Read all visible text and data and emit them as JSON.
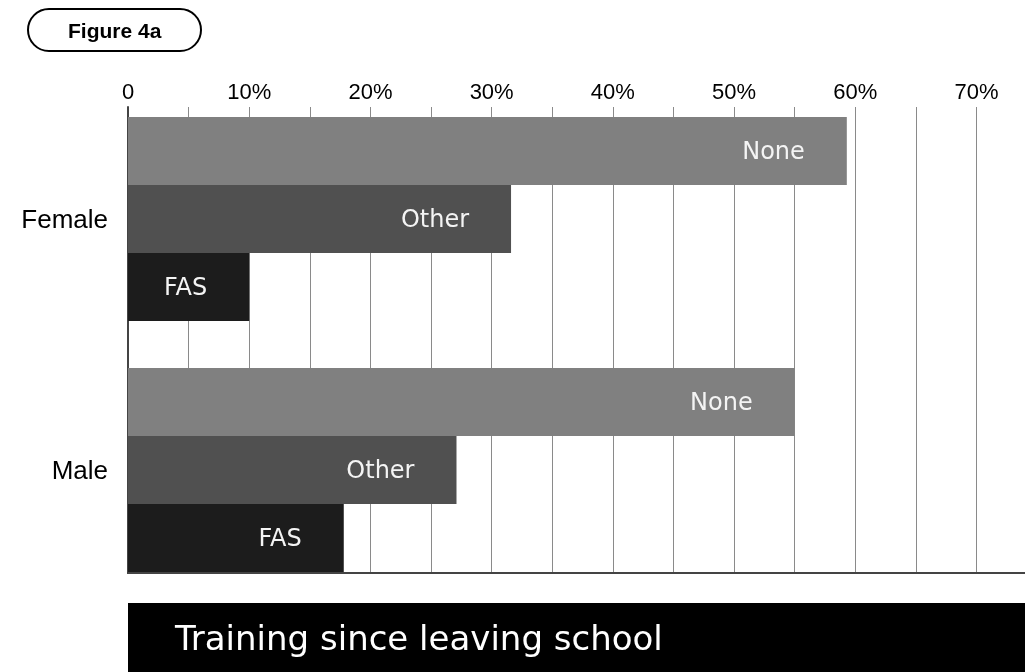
{
  "chart_data": {
    "type": "bar",
    "orientation": "horizontal",
    "title": "Training since leaving school",
    "annotations": [
      "Figure 4a"
    ],
    "categories": [
      "Female",
      "Male"
    ],
    "series": [
      {
        "name": "None",
        "color": "#808080",
        "values": [
          59.3,
          55
        ]
      },
      {
        "name": "Other",
        "color": "#505050",
        "values": [
          31.6,
          27.1
        ]
      },
      {
        "name": "FAS",
        "color": "#1c1c1c",
        "values": [
          10,
          17.8
        ]
      }
    ],
    "xlim": [
      0,
      74
    ],
    "xticks": [
      0,
      {
        "value": 5,
        "label": null
      },
      {
        "value": 10,
        "label": "10%"
      },
      {
        "value": 15,
        "label": null
      },
      {
        "value": 20,
        "label": "20%"
      },
      {
        "value": 25,
        "label": null
      },
      {
        "value": 30,
        "label": "30%"
      },
      {
        "value": 35,
        "label": null
      },
      {
        "value": 40,
        "label": "40%"
      },
      {
        "value": 45,
        "label": null
      },
      {
        "value": 50,
        "label": "50%"
      },
      {
        "value": 55,
        "label": null
      },
      {
        "value": 60,
        "label": "60%"
      },
      {
        "value": 65,
        "label": null
      },
      {
        "value": 70,
        "label": "70%"
      }
    ],
    "grid": "x"
  }
}
